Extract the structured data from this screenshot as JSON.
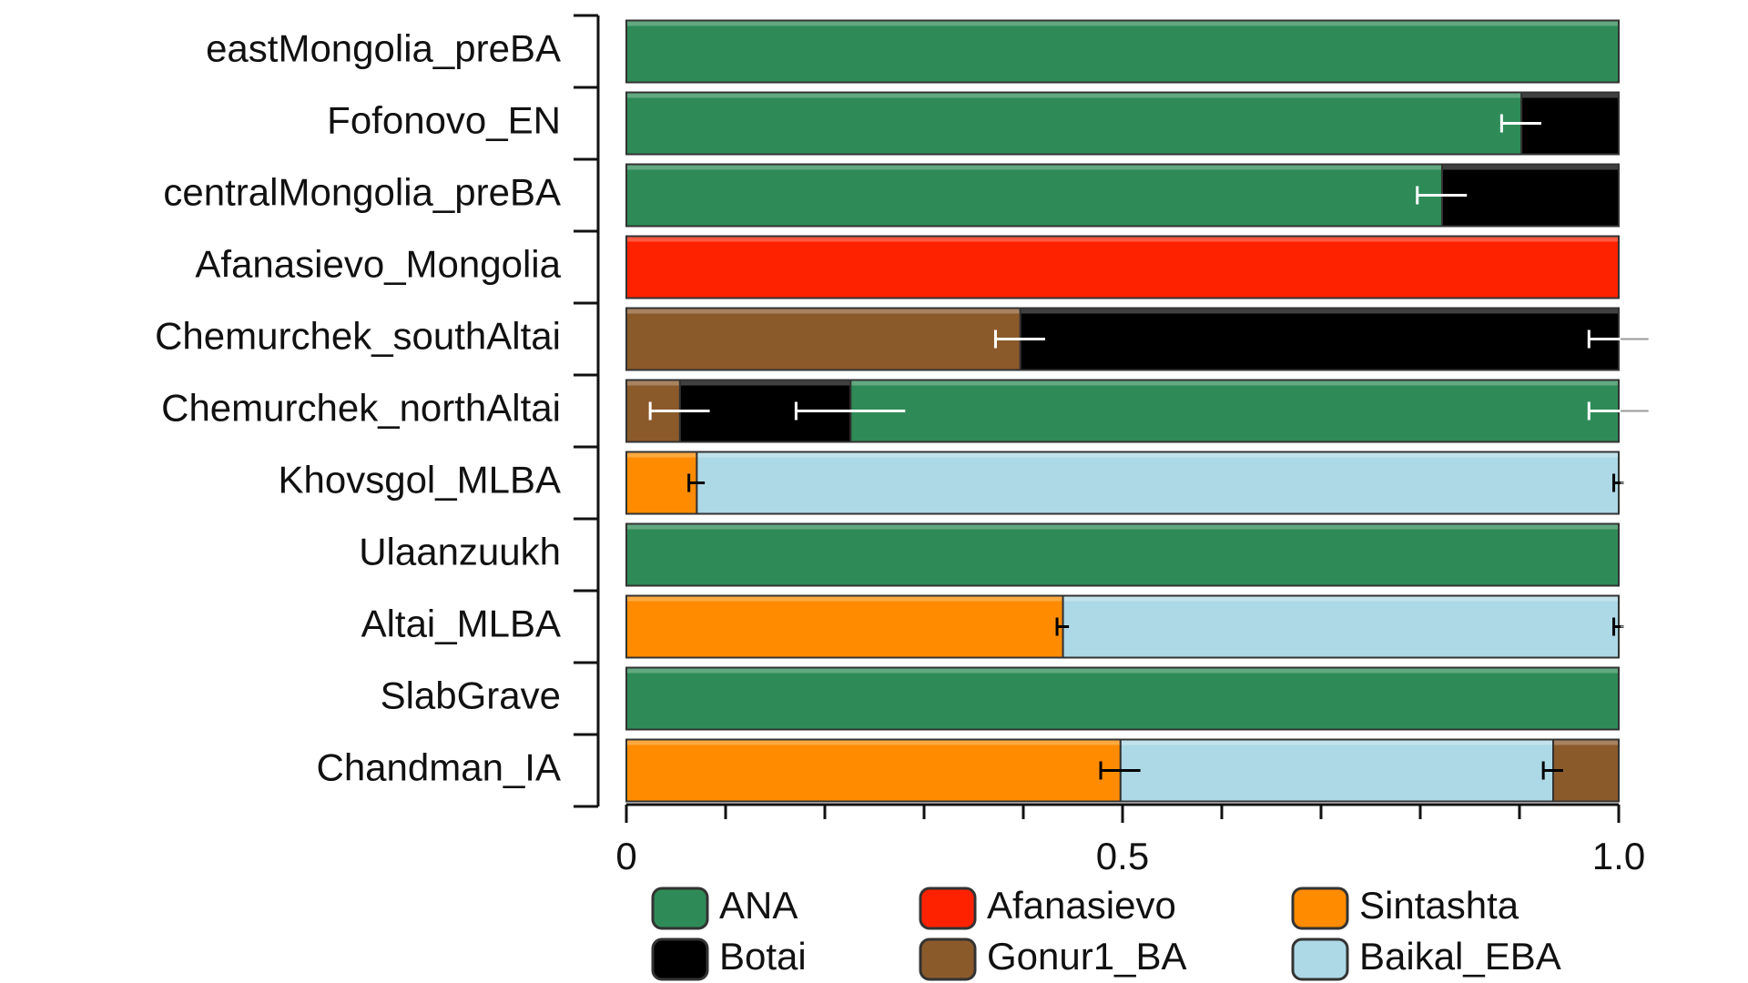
{
  "chart_data": {
    "type": "stacked-bar-horizontal",
    "series": [
      {
        "name": "ANA",
        "color": "#2e8b57"
      },
      {
        "name": "Botai",
        "color": "#000000"
      },
      {
        "name": "Afanasievo",
        "color": "#ff2200"
      },
      {
        "name": "Gonur1_BA",
        "color": "#8b5a2b"
      },
      {
        "name": "Sintashta",
        "color": "#ff8c00"
      },
      {
        "name": "Baikal_EBA",
        "color": "#add8e6"
      }
    ],
    "rows": [
      {
        "label": "eastMongolia_preBA",
        "segments": [
          {
            "series": "ANA",
            "value": 1
          }
        ]
      },
      {
        "label": "Fofonovo_EN",
        "segments": [
          {
            "series": "ANA",
            "value": 0.902,
            "error": 0.02
          },
          {
            "series": "Botai",
            "value": 0.098
          }
        ]
      },
      {
        "label": "centralMongolia_preBA",
        "segments": [
          {
            "series": "ANA",
            "value": 0.822,
            "error": 0.025
          },
          {
            "series": "Botai",
            "value": 0.178
          }
        ]
      },
      {
        "label": "Afanasievo_Mongolia",
        "segments": [
          {
            "series": "Afanasievo",
            "value": 1
          }
        ]
      },
      {
        "label": "Chemurchek_southAltai",
        "segments": [
          {
            "series": "Gonur1_BA",
            "value": 0.397,
            "error": 0.025
          },
          {
            "series": "Botai",
            "value": 0.603,
            "error": 0.03
          }
        ]
      },
      {
        "label": "Chemurchek_northAltai",
        "segments": [
          {
            "series": "Gonur1_BA",
            "value": 0.054,
            "error": 0.03
          },
          {
            "series": "Botai",
            "value": 0.172,
            "error": 0.055
          },
          {
            "series": "ANA",
            "value": 0.774,
            "error": 0.03
          }
        ]
      },
      {
        "label": "Khovsgol_MLBA",
        "segments": [
          {
            "series": "Sintashta",
            "value": 0.071,
            "error": 0.008
          },
          {
            "series": "Baikal_EBA",
            "value": 0.929,
            "error": 0.005
          }
        ]
      },
      {
        "label": "Ulaanzuukh",
        "segments": [
          {
            "series": "ANA",
            "value": 1
          }
        ]
      },
      {
        "label": "Altai_MLBA",
        "segments": [
          {
            "series": "Sintashta",
            "value": 0.44,
            "error": 0.006
          },
          {
            "series": "Baikal_EBA",
            "value": 0.56,
            "error": 0.005
          }
        ]
      },
      {
        "label": "SlabGrave",
        "segments": [
          {
            "series": "ANA",
            "value": 1
          }
        ]
      },
      {
        "label": "Chandman_IA",
        "segments": [
          {
            "series": "Sintashta",
            "value": 0.498,
            "error": 0.02
          },
          {
            "series": "Baikal_EBA",
            "value": 0.436,
            "error": 0.01
          },
          {
            "series": "Gonur1_BA",
            "value": 0.066
          }
        ]
      }
    ],
    "xlim": [
      0,
      1
    ],
    "xticks": [
      0,
      0.5,
      {
        "value": 1,
        "label": "1.0"
      }
    ],
    "minor_xticks": [
      0.1,
      0.2,
      0.3,
      0.4,
      0.6,
      0.7,
      0.8,
      0.9
    ]
  }
}
